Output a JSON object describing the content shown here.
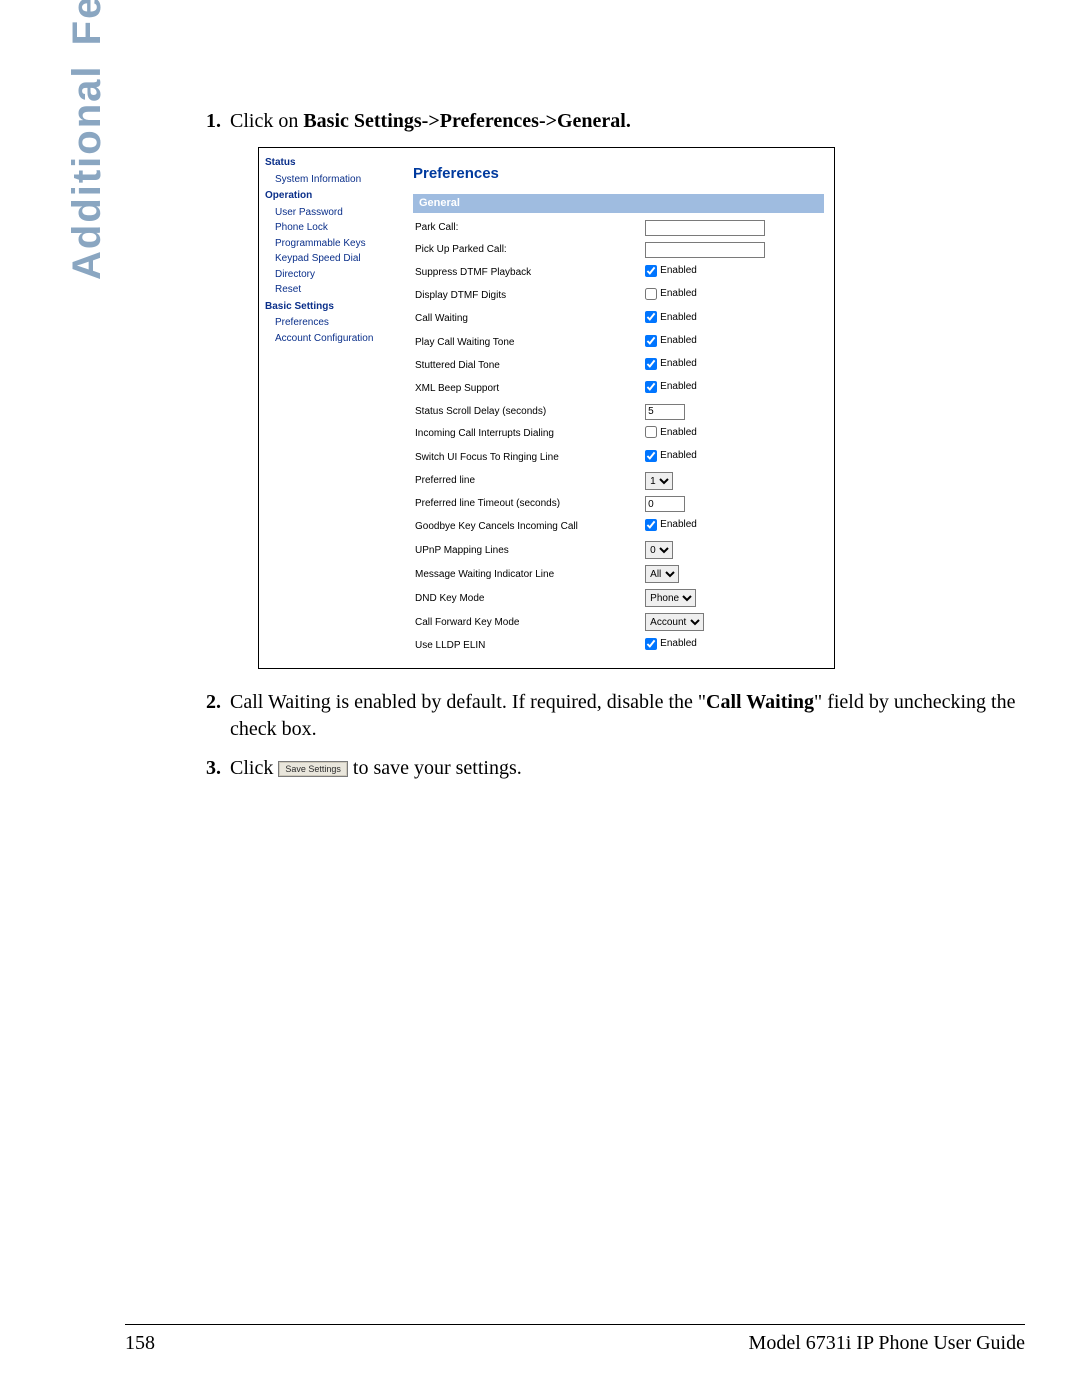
{
  "tab": {
    "word1": "Additional",
    "word2": "Features"
  },
  "steps": {
    "s1_prefix": "Click on ",
    "s1_bold": "Basic Settings->Preferences->General.",
    "s2_a": "Call Waiting is enabled by default. If required, disable the \"",
    "s2_bold": "Call Waiting",
    "s2_b": "\" field by unchecking the check box.",
    "s3_a": "Click ",
    "s3_btn": "Save Settings",
    "s3_b": " to save your settings."
  },
  "panel": {
    "nav": {
      "h_status": "Status",
      "i_sys": "System Information",
      "h_op": "Operation",
      "i_userpw": "User Password",
      "i_phlock": "Phone Lock",
      "i_prog": "Programmable Keys",
      "i_keypad": "Keypad Speed Dial",
      "i_dir": "Directory",
      "i_reset": "Reset",
      "h_basic": "Basic Settings",
      "i_pref": "Preferences",
      "i_acct": "Account Configuration"
    },
    "title": "Preferences",
    "section": "General",
    "enabled_label": "Enabled",
    "rows": {
      "park": "Park Call:",
      "pickup": "Pick Up Parked Call:",
      "supp_dtmf": "Suppress DTMF Playback",
      "disp_dtmf": "Display DTMF Digits",
      "callwait": "Call Waiting",
      "pcwt": "Play Call Waiting Tone",
      "stut": "Stuttered Dial Tone",
      "xml": "XML Beep Support",
      "scroll": "Status Scroll Delay (seconds)",
      "incint": "Incoming Call Interrupts Dialing",
      "switch": "Switch UI Focus To Ringing Line",
      "prefline": "Preferred line",
      "preftime": "Preferred line Timeout (seconds)",
      "goodbye": "Goodbye Key Cancels Incoming Call",
      "upnp": "UPnP Mapping Lines",
      "mwi": "Message Waiting Indicator Line",
      "dnd": "DND Key Mode",
      "cfkey": "Call Forward Key Mode",
      "lldp": "Use LLDP ELIN"
    },
    "values": {
      "scroll": "5",
      "prefline_opt": "1",
      "preftime": "0",
      "upnp_opt": "0",
      "mwi_opt": "All",
      "dnd_opt": "Phone",
      "cfkey_opt": "Account"
    },
    "checks": {
      "supp_dtmf": true,
      "disp_dtmf": false,
      "callwait": true,
      "pcwt": true,
      "stut": true,
      "xml": true,
      "incint": false,
      "switch": true,
      "goodbye": true,
      "lldp": true
    }
  },
  "footer": {
    "page": "158",
    "title": "Model 6731i IP Phone User Guide"
  },
  "vis": {
    "accent_nav": "#0a2f8a",
    "section_bg": "#9fbce0",
    "tab_color": "#8aa6c1"
  }
}
